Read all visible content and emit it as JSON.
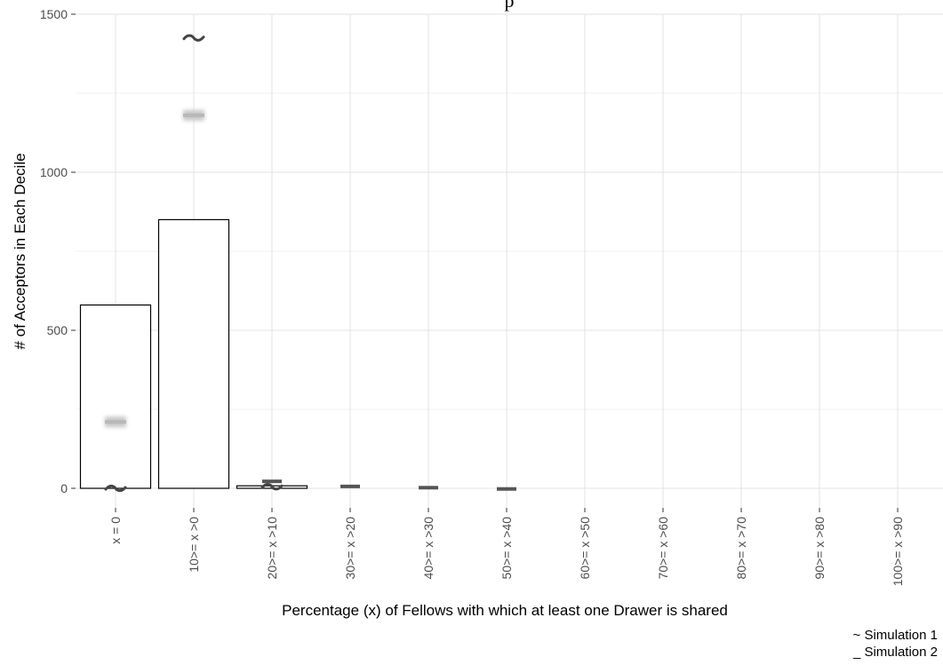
{
  "chart_data": {
    "type": "bar",
    "title": "",
    "title_partial": "p",
    "xlabel": "Percentage (x) of Fellows with which at least one Drawer is shared",
    "ylabel": "# of Acceptors in Each Decile",
    "categories": [
      "x = 0",
      "10>= x >0",
      "20>= x >10",
      "30>= x >20",
      "40>= x >30",
      "50>= x >40",
      "60>= x >50",
      "70>= x >60",
      "80>= x >70",
      "90>= x >80",
      "100>= x >90"
    ],
    "values": [
      580,
      850,
      8,
      0,
      0,
      0,
      0,
      0,
      0,
      0,
      0
    ],
    "ylim": [
      0,
      1500
    ],
    "yticks": [
      0,
      500,
      1000,
      1500
    ],
    "grid": true,
    "legend_position": "bottom-right",
    "series": [
      {
        "name": "Simulation 1",
        "marker": "~",
        "values": [
          0,
          1425,
          5,
          null,
          null,
          null,
          null,
          null,
          null,
          null,
          null
        ]
      },
      {
        "name": "Simulation 2",
        "marker": "_",
        "values": [
          210,
          1180,
          22,
          6,
          2,
          -2,
          null,
          null,
          null,
          null,
          null
        ]
      }
    ],
    "legend": [
      {
        "marker": "~",
        "label": "Simulation 1"
      },
      {
        "marker": "_",
        "label": "Simulation 2"
      }
    ],
    "colors": {
      "bar_fill": "#ffffff",
      "bar_stroke": "#000000",
      "grid": "#e3e3e3",
      "sim1_marker": "#444444",
      "sim2_marker": "#555555",
      "sim2_halo": "#c8c8c8"
    }
  }
}
